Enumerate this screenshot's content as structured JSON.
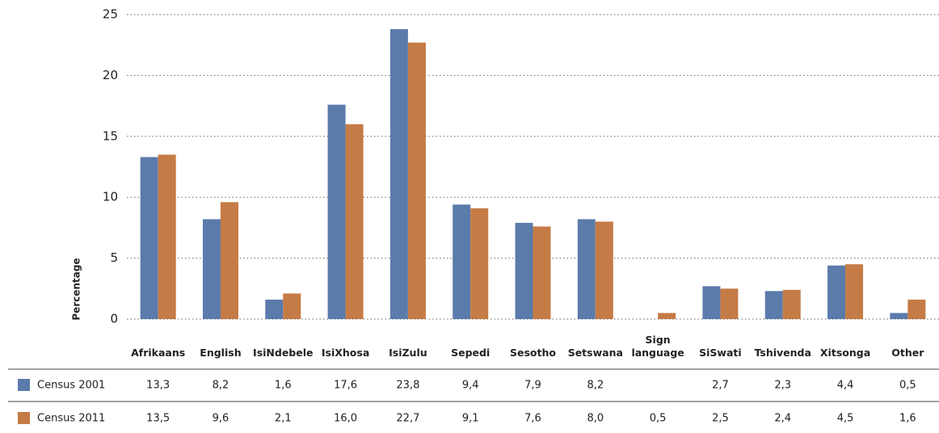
{
  "chart_data": {
    "type": "bar",
    "y_label": "Percentage",
    "categories": [
      "Afrikaans",
      "English",
      "IsiNdebele",
      "IsiXhosa",
      "IsiZulu",
      "Sepedi",
      "Sesotho",
      "Setswana",
      "Sign language",
      "SiSwati",
      "Tshivenda",
      "Xitsonga",
      "Other"
    ],
    "series": [
      {
        "name": "Census 2001",
        "color": "#5b7bab",
        "values": [
          13.3,
          8.2,
          1.6,
          17.6,
          23.8,
          9.4,
          7.9,
          8.2,
          null,
          2.7,
          2.3,
          4.4,
          0.5
        ],
        "value_labels": [
          "13,3",
          "8,2",
          "1,6",
          "17,6",
          "23,8",
          "9,4",
          "7,9",
          "8,2",
          null,
          "2,7",
          "2,3",
          "4,4",
          "0,5"
        ]
      },
      {
        "name": "Census 2011",
        "color": "#c57b45",
        "values": [
          13.5,
          9.6,
          2.1,
          16.0,
          22.7,
          9.1,
          7.6,
          8.0,
          0.5,
          2.5,
          2.4,
          4.5,
          1.6
        ],
        "value_labels": [
          "13,5",
          "9,6",
          "2,1",
          "16,0",
          "22,7",
          "9,1",
          "7,6",
          "8,0",
          "0,5",
          "2,5",
          "2,4",
          "4,5",
          "1,6"
        ]
      }
    ],
    "ylim": [
      0,
      25
    ],
    "yticks": [
      0,
      5,
      10,
      15,
      20,
      25
    ],
    "grid": true
  }
}
